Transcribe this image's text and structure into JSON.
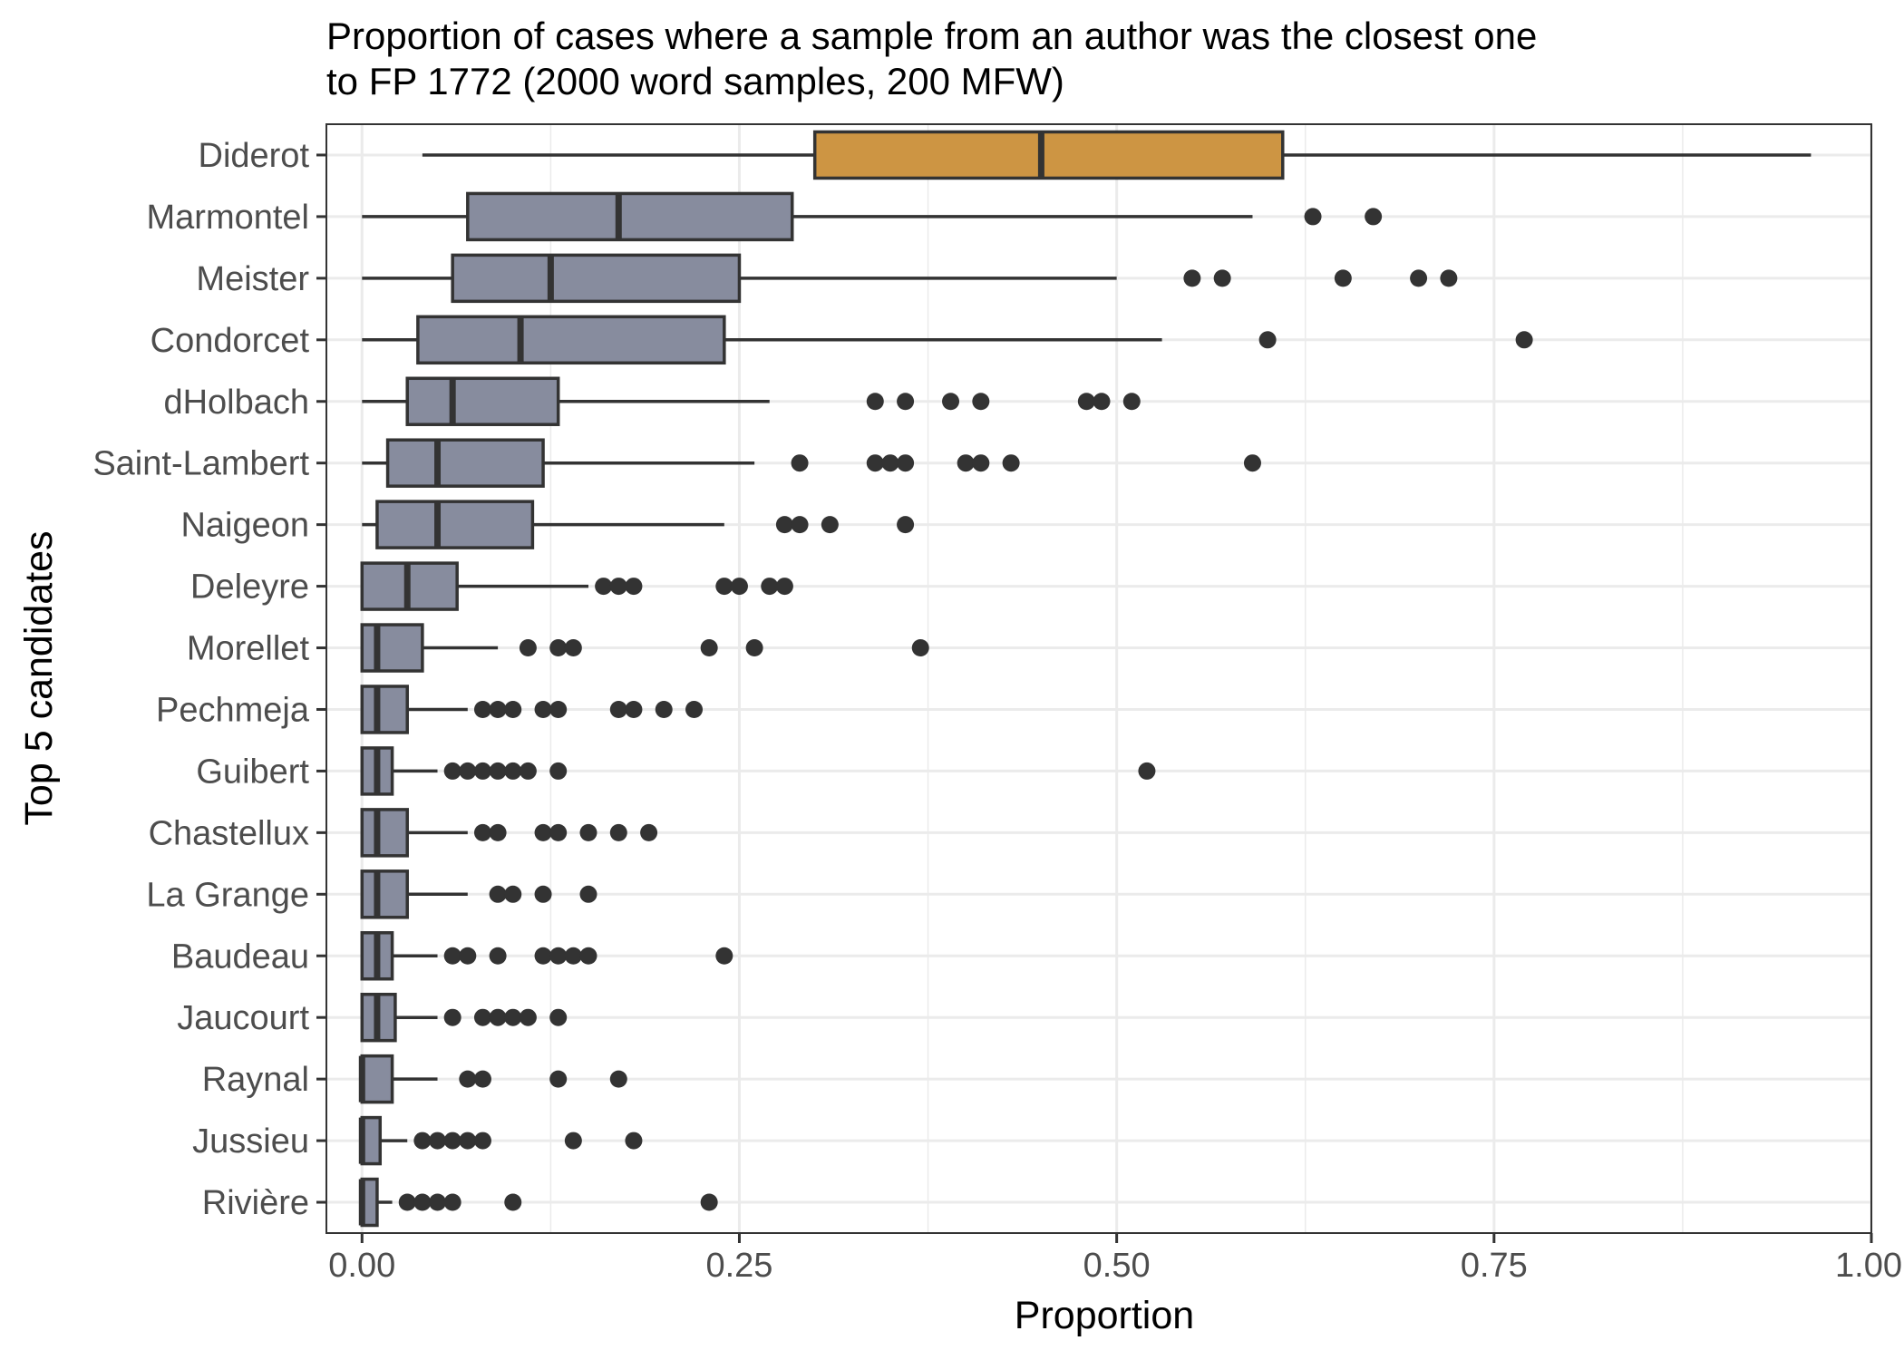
{
  "chart_data": {
    "type": "boxplot",
    "orientation": "horizontal",
    "title": "Proportion of cases where a sample from an author was the closest one",
    "title_line2": "to FP 1772 (2000 word samples, 200 MFW)",
    "xlabel": "Proportion",
    "ylabel": "Top 5 candidates",
    "xlim": [
      -0.0236,
      1.0
    ],
    "x_ticks": [
      0.0,
      0.25,
      0.5,
      0.75,
      1.0
    ],
    "x_tick_labels": [
      "0.00",
      "0.25",
      "0.50",
      "0.75",
      "1.00"
    ],
    "grid": true,
    "legend": "none",
    "colors": {
      "highlight_fill": "#cd9543",
      "box_fill": "#878c9e",
      "box_stroke": "#333333",
      "grid": "#ebebeb",
      "panel_border": "#333333"
    },
    "series": [
      {
        "category": "Diderot",
        "highlight": true,
        "whisker_low": 0.04,
        "q1": 0.3,
        "median": 0.45,
        "q3": 0.61,
        "whisker_high": 0.96,
        "outliers": []
      },
      {
        "category": "Marmontel",
        "highlight": false,
        "whisker_low": 0.0,
        "q1": 0.07,
        "median": 0.17,
        "q3": 0.285,
        "whisker_high": 0.59,
        "outliers": [
          0.63,
          0.67
        ]
      },
      {
        "category": "Meister",
        "highlight": false,
        "whisker_low": 0.0,
        "q1": 0.06,
        "median": 0.125,
        "q3": 0.25,
        "whisker_high": 0.5,
        "outliers": [
          0.55,
          0.57,
          0.65,
          0.7,
          0.72
        ]
      },
      {
        "category": "Condorcet",
        "highlight": false,
        "whisker_low": 0.0,
        "q1": 0.037,
        "median": 0.105,
        "q3": 0.24,
        "whisker_high": 0.53,
        "outliers": [
          0.6,
          0.77
        ]
      },
      {
        "category": "dHolbach",
        "highlight": false,
        "whisker_low": 0.0,
        "q1": 0.03,
        "median": 0.06,
        "q3": 0.13,
        "whisker_high": 0.27,
        "outliers": [
          0.34,
          0.36,
          0.39,
          0.41,
          0.48,
          0.49,
          0.51
        ]
      },
      {
        "category": "Saint-Lambert",
        "highlight": false,
        "whisker_low": 0.0,
        "q1": 0.017,
        "median": 0.05,
        "q3": 0.12,
        "whisker_high": 0.26,
        "outliers": [
          0.29,
          0.34,
          0.35,
          0.36,
          0.4,
          0.41,
          0.43,
          0.59
        ]
      },
      {
        "category": "Naigeon",
        "highlight": false,
        "whisker_low": 0.0,
        "q1": 0.01,
        "median": 0.05,
        "q3": 0.113,
        "whisker_high": 0.24,
        "outliers": [
          0.28,
          0.29,
          0.31,
          0.36
        ]
      },
      {
        "category": "Deleyre",
        "highlight": false,
        "whisker_low": 0.0,
        "q1": 0.0,
        "median": 0.03,
        "q3": 0.063,
        "whisker_high": 0.15,
        "outliers": [
          0.16,
          0.17,
          0.18,
          0.24,
          0.25,
          0.27,
          0.28
        ]
      },
      {
        "category": "Morellet",
        "highlight": false,
        "whisker_low": 0.0,
        "q1": 0.0,
        "median": 0.01,
        "q3": 0.04,
        "whisker_high": 0.09,
        "outliers": [
          0.11,
          0.13,
          0.14,
          0.23,
          0.26,
          0.37
        ]
      },
      {
        "category": "Pechmeja",
        "highlight": false,
        "whisker_low": 0.0,
        "q1": 0.0,
        "median": 0.01,
        "q3": 0.03,
        "whisker_high": 0.07,
        "outliers": [
          0.08,
          0.09,
          0.1,
          0.12,
          0.13,
          0.17,
          0.18,
          0.2,
          0.22
        ]
      },
      {
        "category": "Guibert",
        "highlight": false,
        "whisker_low": 0.0,
        "q1": 0.0,
        "median": 0.01,
        "q3": 0.02,
        "whisker_high": 0.05,
        "outliers": [
          0.06,
          0.07,
          0.08,
          0.09,
          0.1,
          0.11,
          0.13,
          0.52
        ]
      },
      {
        "category": "Chastellux",
        "highlight": false,
        "whisker_low": 0.0,
        "q1": 0.0,
        "median": 0.01,
        "q3": 0.03,
        "whisker_high": 0.07,
        "outliers": [
          0.08,
          0.09,
          0.12,
          0.13,
          0.15,
          0.17,
          0.19
        ]
      },
      {
        "category": "La Grange",
        "highlight": false,
        "whisker_low": 0.0,
        "q1": 0.0,
        "median": 0.01,
        "q3": 0.03,
        "whisker_high": 0.07,
        "outliers": [
          0.09,
          0.1,
          0.12,
          0.15
        ]
      },
      {
        "category": "Baudeau",
        "highlight": false,
        "whisker_low": 0.0,
        "q1": 0.0,
        "median": 0.01,
        "q3": 0.02,
        "whisker_high": 0.05,
        "outliers": [
          0.06,
          0.07,
          0.09,
          0.12,
          0.13,
          0.14,
          0.15,
          0.24
        ]
      },
      {
        "category": "Jaucourt",
        "highlight": false,
        "whisker_low": 0.0,
        "q1": 0.0,
        "median": 0.01,
        "q3": 0.022,
        "whisker_high": 0.05,
        "outliers": [
          0.06,
          0.08,
          0.09,
          0.1,
          0.11,
          0.13
        ]
      },
      {
        "category": "Raynal",
        "highlight": false,
        "whisker_low": 0.0,
        "q1": 0.0,
        "median": 0.0,
        "q3": 0.02,
        "whisker_high": 0.05,
        "outliers": [
          0.07,
          0.08,
          0.13,
          0.17
        ]
      },
      {
        "category": "Jussieu",
        "highlight": false,
        "whisker_low": 0.0,
        "q1": 0.0,
        "median": 0.0,
        "q3": 0.012,
        "whisker_high": 0.03,
        "outliers": [
          0.04,
          0.05,
          0.06,
          0.07,
          0.08,
          0.14,
          0.18
        ]
      },
      {
        "category": "Rivière",
        "highlight": false,
        "whisker_low": 0.0,
        "q1": 0.0,
        "median": 0.0,
        "q3": 0.01,
        "whisker_high": 0.02,
        "outliers": [
          0.03,
          0.04,
          0.05,
          0.06,
          0.1,
          0.23
        ]
      }
    ]
  }
}
